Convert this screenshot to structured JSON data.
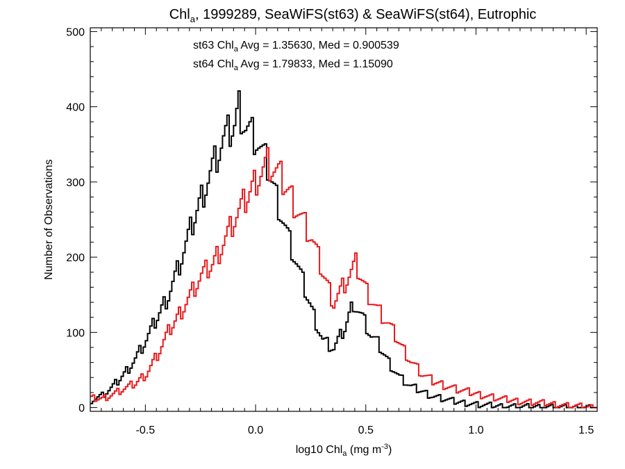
{
  "chart_data": {
    "type": "histogram-step",
    "title": {
      "pre": "Chl",
      "sub": "a",
      "post": ", 1999289, SeaWiFS(st63) & SeaWiFS(st64), Eutrophic"
    },
    "xlabel": {
      "pre": "log10 Chl",
      "sub": "a",
      "mid": " (mg m",
      "sup": "-3",
      "post": ")"
    },
    "ylabel": "Number of Observations",
    "xlim": [
      -0.75,
      1.55
    ],
    "ylim": [
      -5,
      505
    ],
    "xticks": [
      -0.5,
      0.0,
      0.5,
      1.0,
      1.5
    ],
    "xtick_labels": [
      "-0.5",
      "0.0",
      "0.5",
      "1.0",
      "1.5"
    ],
    "yticks": [
      0,
      100,
      200,
      300,
      400,
      500
    ],
    "ytick_labels": [
      "0",
      "100",
      "200",
      "300",
      "400",
      "500"
    ],
    "grid": false,
    "annotations": [
      {
        "color": "#000000",
        "pre": "st63 Chl",
        "sub": "a",
        "post": " Avg = 1.35630, Med = 0.900539"
      },
      {
        "color": "#e8191c",
        "pre": "st64 Chl",
        "sub": "a",
        "post": " Avg = 1.79833, Med = 1.15090"
      }
    ],
    "series": [
      {
        "color": "#000000",
        "points": [
          [
            -0.75,
            10
          ],
          [
            -0.7,
            16
          ],
          [
            -0.65,
            28
          ],
          [
            -0.6,
            45
          ],
          [
            -0.55,
            65
          ],
          [
            -0.5,
            90
          ],
          [
            -0.45,
            120
          ],
          [
            -0.4,
            150
          ],
          [
            -0.35,
            190
          ],
          [
            -0.3,
            235
          ],
          [
            -0.25,
            280
          ],
          [
            -0.2,
            320
          ],
          [
            -0.15,
            355
          ],
          [
            -0.1,
            375
          ],
          [
            -0.08,
            400
          ],
          [
            -0.05,
            375
          ],
          [
            0.0,
            355
          ],
          [
            0.05,
            320
          ],
          [
            0.1,
            270
          ],
          [
            0.15,
            220
          ],
          [
            0.2,
            175
          ],
          [
            0.25,
            130
          ],
          [
            0.3,
            90
          ],
          [
            0.35,
            78
          ],
          [
            0.4,
            105
          ],
          [
            0.44,
            140
          ],
          [
            0.48,
            120
          ],
          [
            0.52,
            95
          ],
          [
            0.55,
            85
          ],
          [
            0.6,
            60
          ],
          [
            0.65,
            40
          ],
          [
            0.7,
            28
          ],
          [
            0.8,
            15
          ],
          [
            0.9,
            8
          ],
          [
            1.0,
            4
          ],
          [
            1.1,
            2
          ],
          [
            1.2,
            1
          ],
          [
            1.3,
            1
          ],
          [
            1.4,
            0
          ],
          [
            1.55,
            0
          ]
        ]
      },
      {
        "color": "#e8191c",
        "points": [
          [
            -0.75,
            12
          ],
          [
            -0.7,
            12
          ],
          [
            -0.65,
            18
          ],
          [
            -0.6,
            25
          ],
          [
            -0.55,
            32
          ],
          [
            -0.5,
            45
          ],
          [
            -0.45,
            70
          ],
          [
            -0.4,
            100
          ],
          [
            -0.35,
            125
          ],
          [
            -0.3,
            150
          ],
          [
            -0.25,
            175
          ],
          [
            -0.2,
            190
          ],
          [
            -0.15,
            220
          ],
          [
            -0.1,
            250
          ],
          [
            -0.05,
            275
          ],
          [
            0.0,
            305
          ],
          [
            0.05,
            325
          ],
          [
            0.1,
            310
          ],
          [
            0.15,
            285
          ],
          [
            0.2,
            255
          ],
          [
            0.25,
            225
          ],
          [
            0.3,
            180
          ],
          [
            0.35,
            140
          ],
          [
            0.4,
            165
          ],
          [
            0.45,
            190
          ],
          [
            0.5,
            155
          ],
          [
            0.55,
            130
          ],
          [
            0.6,
            110
          ],
          [
            0.65,
            85
          ],
          [
            0.7,
            62
          ],
          [
            0.75,
            45
          ],
          [
            0.8,
            35
          ],
          [
            0.9,
            25
          ],
          [
            1.0,
            18
          ],
          [
            1.1,
            12
          ],
          [
            1.2,
            8
          ],
          [
            1.3,
            6
          ],
          [
            1.4,
            3
          ],
          [
            1.5,
            1
          ],
          [
            1.55,
            0
          ]
        ]
      }
    ]
  }
}
